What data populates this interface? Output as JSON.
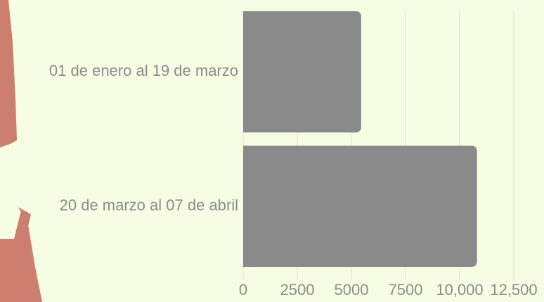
{
  "chart_data": {
    "type": "hbar",
    "categories": [
      "01 de enero al 19 de marzo",
      "20 de marzo al 07 de abril"
    ],
    "values": [
      5450,
      10800
    ],
    "color": "#8a8a8a",
    "xlim": [
      0,
      12500
    ],
    "xticks": [
      0,
      2500,
      5000,
      7500,
      {
        "value": 10000,
        "label": "10,000"
      },
      {
        "value": 12500,
        "label": "12,500"
      }
    ],
    "grid": true
  }
}
